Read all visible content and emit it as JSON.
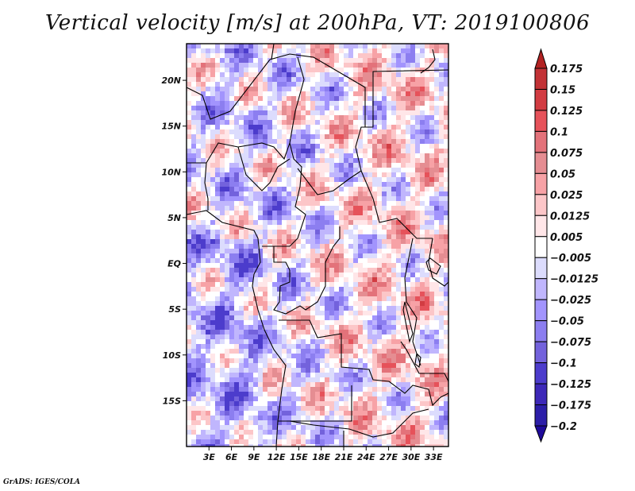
{
  "title": "Vertical velocity [m/s] at 200hPa, VT: 2019100806",
  "credit": "GrADS: IGES/COLA",
  "map": {
    "lon_range": [
      0,
      35
    ],
    "lat_range": [
      -20,
      24
    ],
    "lat_ticks": [
      {
        "value": 20,
        "label": "20N"
      },
      {
        "value": 15,
        "label": "15N"
      },
      {
        "value": 10,
        "label": "10N"
      },
      {
        "value": 5,
        "label": "5N"
      },
      {
        "value": 0,
        "label": "EQ"
      },
      {
        "value": -5,
        "label": "5S"
      },
      {
        "value": -10,
        "label": "10S"
      },
      {
        "value": -15,
        "label": "15S"
      }
    ],
    "lon_ticks": [
      {
        "value": 3,
        "label": "3E"
      },
      {
        "value": 6,
        "label": "6E"
      },
      {
        "value": 9,
        "label": "9E"
      },
      {
        "value": 12,
        "label": "12E"
      },
      {
        "value": 15,
        "label": "15E"
      },
      {
        "value": 18,
        "label": "18E"
      },
      {
        "value": 21,
        "label": "21E"
      },
      {
        "value": 24,
        "label": "24E"
      },
      {
        "value": 27,
        "label": "27E"
      },
      {
        "value": 30,
        "label": "30E"
      },
      {
        "value": 33,
        "label": "33E"
      }
    ],
    "field": "vertical velocity",
    "units": "m/s",
    "level": "200hPa",
    "valid_time": "2019100806"
  },
  "colorbar": {
    "levels": [
      0.175,
      0.15,
      0.125,
      0.1,
      0.075,
      0.05,
      0.025,
      0.0125,
      0.005,
      -0.005,
      -0.0125,
      -0.025,
      -0.05,
      -0.075,
      -0.1,
      -0.125,
      -0.175,
      -0.2
    ],
    "labels": [
      "0.175",
      "0.15",
      "0.125",
      "0.1",
      "0.075",
      "0.05",
      "0.025",
      "0.0125",
      "0.005",
      "−0.005",
      "−0.0125",
      "−0.025",
      "−0.05",
      "−0.075",
      "−0.1",
      "−0.125",
      "−0.175",
      "−0.2"
    ],
    "colors": [
      "#b22222",
      "#c23236",
      "#d23c42",
      "#e6525a",
      "#e3727a",
      "#e58d92",
      "#f7a2a6",
      "#fcc6c8",
      "#ffe6e8",
      "#ffffff",
      "#dcdcfd",
      "#c0b6fd",
      "#a294fd",
      "#8c7ef0",
      "#7362dc",
      "#4c3ccc",
      "#3d28b8",
      "#2c1ea8",
      "#1e0a9a"
    ]
  },
  "palette": {
    "pos": [
      "#ffe6e8",
      "#fcc6c8",
      "#f7a2a6",
      "#e58d92",
      "#e3727a",
      "#e6525a",
      "#d23c42",
      "#b22222"
    ],
    "neg": [
      "#dcdcfd",
      "#c0b6fd",
      "#a294fd",
      "#8c7ef0",
      "#7362dc",
      "#4c3ccc"
    ]
  }
}
